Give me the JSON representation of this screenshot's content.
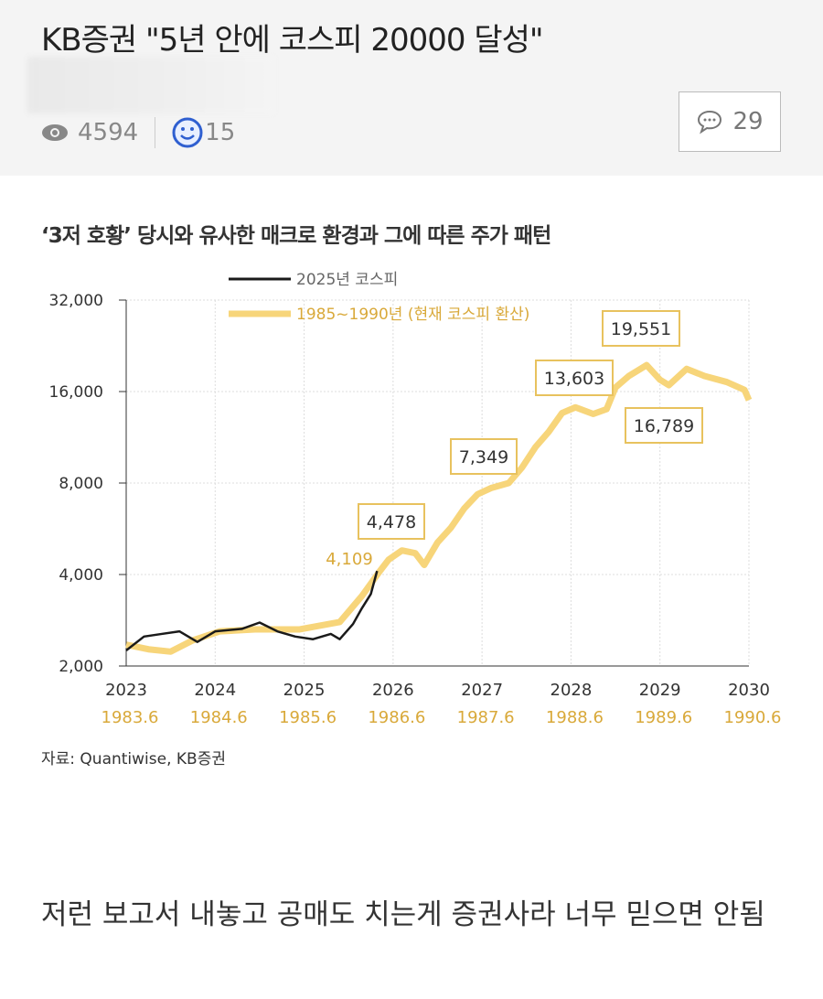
{
  "post": {
    "title": "KB증권 \"5년 안에 코스피 20000 달성\"",
    "views": "4594",
    "likes": "15",
    "comments": "29",
    "icons": {
      "views": "eye-icon",
      "likes": "smiley-icon",
      "comments": "speech-bubble-icon"
    }
  },
  "chart_data": {
    "type": "line",
    "title": "‘3저 호황’ 당시와 유사한 매크로 환경과 그에 따른 주가 패턴",
    "y_scale": "log",
    "ylim": [
      2000,
      32000
    ],
    "y_ticks": [
      "32,000",
      "16,000",
      "8,000",
      "4,000",
      "2,000"
    ],
    "y_tick_values": [
      32000,
      16000,
      8000,
      4000,
      2000
    ],
    "xlim": [
      2023,
      2030
    ],
    "x_ticks": [
      "2023",
      "2024",
      "2025",
      "2026",
      "2027",
      "2028",
      "2029",
      "2030"
    ],
    "x_ticks_secondary": [
      "1983.6",
      "1984.6",
      "1985.6",
      "1986.6",
      "1987.6",
      "1988.6",
      "1989.6",
      "1990.6"
    ],
    "grid": true,
    "legend_placement": "top-left",
    "series": [
      {
        "name": "2025년 코스피",
        "color": "#1a1a1a",
        "points": [
          [
            2023.0,
            2250
          ],
          [
            2023.2,
            2500
          ],
          [
            2023.4,
            2550
          ],
          [
            2023.6,
            2600
          ],
          [
            2023.8,
            2400
          ],
          [
            2024.0,
            2600
          ],
          [
            2024.3,
            2650
          ],
          [
            2024.5,
            2780
          ],
          [
            2024.7,
            2600
          ],
          [
            2024.9,
            2500
          ],
          [
            2025.1,
            2450
          ],
          [
            2025.3,
            2550
          ],
          [
            2025.4,
            2450
          ],
          [
            2025.55,
            2750
          ],
          [
            2025.65,
            3100
          ],
          [
            2025.75,
            3450
          ],
          [
            2025.82,
            4109
          ]
        ]
      },
      {
        "name": "1985~1990년 (현재 코스피 환산)",
        "color": "#f7d57a",
        "points": [
          [
            2023.0,
            2350
          ],
          [
            2023.25,
            2270
          ],
          [
            2023.5,
            2230
          ],
          [
            2023.75,
            2430
          ],
          [
            2024.05,
            2600
          ],
          [
            2024.45,
            2640
          ],
          [
            2024.95,
            2640
          ],
          [
            2025.4,
            2790
          ],
          [
            2025.65,
            3400
          ],
          [
            2025.85,
            4100
          ],
          [
            2025.95,
            4478
          ],
          [
            2026.1,
            4800
          ],
          [
            2026.25,
            4700
          ],
          [
            2026.35,
            4300
          ],
          [
            2026.5,
            5100
          ],
          [
            2026.65,
            5700
          ],
          [
            2026.8,
            6600
          ],
          [
            2026.95,
            7349
          ],
          [
            2027.1,
            7700
          ],
          [
            2027.3,
            8000
          ],
          [
            2027.45,
            9000
          ],
          [
            2027.6,
            10500
          ],
          [
            2027.75,
            11800
          ],
          [
            2027.9,
            13603
          ],
          [
            2028.05,
            14200
          ],
          [
            2028.25,
            13500
          ],
          [
            2028.4,
            14000
          ],
          [
            2028.5,
            16500
          ],
          [
            2028.65,
            18000
          ],
          [
            2028.85,
            19551
          ],
          [
            2029.0,
            17500
          ],
          [
            2029.1,
            16789
          ],
          [
            2029.3,
            19000
          ],
          [
            2029.5,
            18000
          ],
          [
            2029.75,
            17200
          ],
          [
            2029.95,
            16200
          ],
          [
            2030.0,
            15000
          ]
        ]
      }
    ],
    "annotations": [
      {
        "text": "4,109",
        "x": 2025.82,
        "y": 4109,
        "boxed": false
      },
      {
        "text": "4,478",
        "x": 2025.95,
        "y": 4478,
        "boxed": true
      },
      {
        "text": "7,349",
        "x": 2026.95,
        "y": 7349,
        "boxed": true
      },
      {
        "text": "13,603",
        "x": 2027.9,
        "y": 13603,
        "boxed": true
      },
      {
        "text": "19,551",
        "x": 2028.85,
        "y": 19551,
        "boxed": true
      },
      {
        "text": "16,789",
        "x": 2029.1,
        "y": 16789,
        "boxed": true
      }
    ],
    "source": "자료: Quantiwise, KB증권"
  },
  "body": "저런 보고서 내놓고 공매도 치는게 증권사라 너무 믿으면 안됨"
}
